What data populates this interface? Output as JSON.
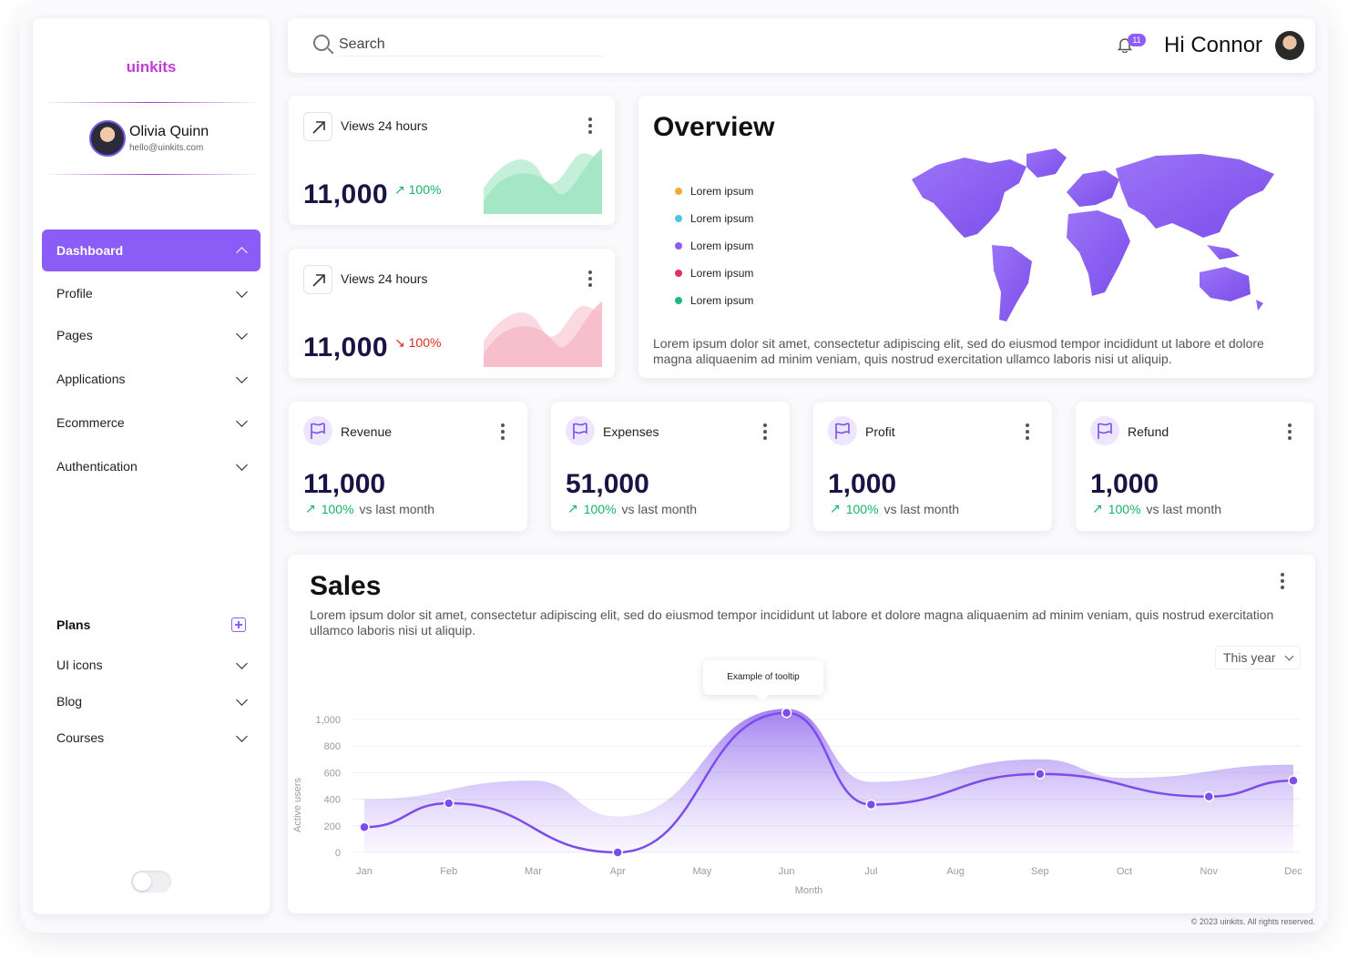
{
  "sidebar": {
    "logo": "uinkits",
    "user": {
      "name": "Olivia Quinn",
      "email": "hello@uinkits.com"
    },
    "nav": [
      {
        "label": "Dashboard",
        "active": true
      },
      {
        "label": "Profile"
      },
      {
        "label": "Pages"
      },
      {
        "label": "Applications"
      },
      {
        "label": "Ecommerce"
      },
      {
        "label": "Authentication"
      }
    ],
    "plans_label": "Plans",
    "secondary": [
      {
        "label": "UI icons"
      },
      {
        "label": "Blog"
      },
      {
        "label": "Courses"
      }
    ]
  },
  "header": {
    "search_placeholder": "Search",
    "notification_count": "11",
    "greeting": "Hi Connor"
  },
  "views": [
    {
      "title": "Views 24 hours",
      "value": "11,000",
      "delta": "100%",
      "direction": "up",
      "color": "#17b26a"
    },
    {
      "title": "Views 24 hours",
      "value": "11,000",
      "delta": "100%",
      "direction": "down",
      "color": "#d92d20"
    }
  ],
  "overview": {
    "title": "Overview",
    "legend": [
      {
        "label": "Lorem ipsum",
        "color": "#f0a93b"
      },
      {
        "label": "Lorem ipsum",
        "color": "#4cc3e8"
      },
      {
        "label": "Lorem ipsum",
        "color": "#8b5cf6"
      },
      {
        "label": "Lorem ipsum",
        "color": "#e0335e"
      },
      {
        "label": "Lorem ipsum",
        "color": "#20b486"
      }
    ],
    "text": "Lorem ipsum dolor sit amet, consectetur adipiscing elit, sed do eiusmod tempor incididunt ut labore et dolore magna aliquaenim ad minim veniam, quis nostrud exercitation ullamco laboris nisi ut aliquip."
  },
  "stats": [
    {
      "title": "Revenue",
      "value": "11,000",
      "delta": "100%",
      "note": "vs last month"
    },
    {
      "title": "Expenses",
      "value": "51,000",
      "delta": "100%",
      "note": "vs last month"
    },
    {
      "title": "Profit",
      "value": "1,000",
      "delta": "100%",
      "note": "vs last month"
    },
    {
      "title": "Refund",
      "value": "1,000",
      "delta": "100%",
      "note": "vs last month"
    }
  ],
  "sales": {
    "title": "Sales",
    "text": "Lorem ipsum dolor sit amet, consectetur adipiscing elit, sed do eiusmod tempor incididunt ut labore et dolore magna aliquaenim ad minim veniam, quis nostrud exercitation ullamco laboris nisi ut aliquip.",
    "period": "This year",
    "tooltip": "Example of tooltip"
  },
  "chart_data": {
    "type": "area",
    "xlabel": "Month",
    "ylabel": "Active users",
    "ylim": [
      0,
      1000
    ],
    "yticks": [
      "0",
      "200",
      "400",
      "600",
      "800",
      "1,000"
    ],
    "categories": [
      "Jan",
      "Feb",
      "Mar",
      "Apr",
      "May",
      "Jun",
      "Jul",
      "Aug",
      "Sep",
      "Oct",
      "Nov",
      "Dec"
    ],
    "points": [
      {
        "x": "Jan",
        "y": 190
      },
      {
        "x": "Feb",
        "y": 370
      },
      {
        "x": "Apr",
        "y": 0
      },
      {
        "x": "Jun",
        "y": 1050
      },
      {
        "x": "Jul",
        "y": 360
      },
      {
        "x": "Sep",
        "y": 590
      },
      {
        "x": "Nov",
        "y": 420
      },
      {
        "x": "Dec",
        "y": 540
      }
    ],
    "band_upper": [
      {
        "x": "Jan",
        "y": 400
      },
      {
        "x": "Mar",
        "y": 540
      },
      {
        "x": "Apr",
        "y": 270
      },
      {
        "x": "Jun",
        "y": 1080
      },
      {
        "x": "Jul",
        "y": 530
      },
      {
        "x": "Sep",
        "y": 700
      },
      {
        "x": "Oct",
        "y": 560
      },
      {
        "x": "Dec",
        "y": 660
      }
    ],
    "grid": true,
    "line_color": "#7c4dea"
  },
  "footer": "© 2023 uinkits. All rights reserved."
}
